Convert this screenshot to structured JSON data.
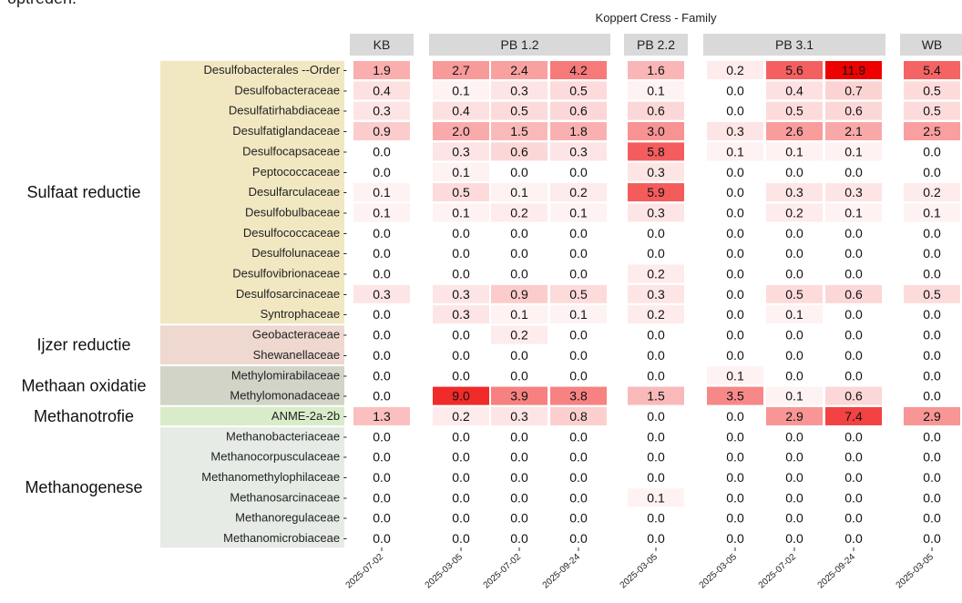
{
  "page": {
    "intro_text": "optreden."
  },
  "chart_data": {
    "type": "heatmap",
    "title": "Koppert Cress - Family",
    "facets": [
      {
        "label": "KB",
        "dates": [
          "2025-07-02"
        ]
      },
      {
        "label": "PB 1.2",
        "dates": [
          "2025-03-05",
          "2025-07-02",
          "2025-09-24"
        ]
      },
      {
        "label": "PB 2.2",
        "dates": [
          "2025-03-05"
        ]
      },
      {
        "label": "PB 3.1",
        "dates": [
          "2025-03-05",
          "2025-07-02",
          "2025-09-24"
        ]
      },
      {
        "label": "WB",
        "dates": [
          "2025-03-05"
        ]
      }
    ],
    "groups": [
      {
        "label": "Sulfaat reductie",
        "color": "#f1e8c2",
        "rows": [
          0,
          12
        ]
      },
      {
        "label": "Ijzer reductie",
        "color": "#eed8cf",
        "rows": [
          13,
          14
        ]
      },
      {
        "label": "Methaan oxidatie",
        "color": "#d2d4c8",
        "rows": [
          15,
          16
        ]
      },
      {
        "label": "Methanotrofie",
        "color": "#d9ecc9",
        "rows": [
          17,
          17
        ]
      },
      {
        "label": "Methanogenese",
        "color": "#e6ebe6",
        "rows": [
          18,
          23
        ]
      }
    ],
    "rows": [
      "Desulfobacterales --Order",
      "Desulfobacteraceae",
      "Desulfatirhabdiaceae",
      "Desulfatiglandaceae",
      "Desulfocapsaceae",
      "Peptococcaceae",
      "Desulfarculaceae",
      "Desulfobulbaceae",
      "Desulfococcaceae",
      "Desulfolunaceae",
      "Desulfovibrionaceae",
      "Desulfosarcinaceae",
      "Syntrophaceae",
      "Geobacteraceae",
      "Shewanellaceae",
      "Methylomirabilaceae",
      "Methylomonadaceae",
      "ANME-2a-2b",
      "Methanobacteriaceae",
      "Methanocorpusculaceae",
      "Methanomethylophilaceae",
      "Methanosarcinaceae",
      "Methanoregulaceae",
      "Methanomicrobiaceae"
    ],
    "values": [
      [
        "1.9",
        "2.7",
        "2.4",
        "4.2",
        "1.6",
        "0.2",
        "5.6",
        "11.9",
        "5.4"
      ],
      [
        "0.4",
        "0.1",
        "0.3",
        "0.5",
        "0.1",
        "0.0",
        "0.4",
        "0.7",
        "0.5"
      ],
      [
        "0.3",
        "0.4",
        "0.5",
        "0.6",
        "0.6",
        "0.0",
        "0.5",
        "0.6",
        "0.5"
      ],
      [
        "0.9",
        "2.0",
        "1.5",
        "1.8",
        "3.0",
        "0.3",
        "2.6",
        "2.1",
        "2.5"
      ],
      [
        "0.0",
        "0.3",
        "0.6",
        "0.3",
        "5.8",
        "0.1",
        "0.1",
        "0.1",
        "0.0"
      ],
      [
        "0.0",
        "0.1",
        "0.0",
        "0.0",
        "0.3",
        "0.0",
        "0.0",
        "0.0",
        "0.0"
      ],
      [
        "0.1",
        "0.5",
        "0.1",
        "0.2",
        "5.9",
        "0.0",
        "0.3",
        "0.3",
        "0.2"
      ],
      [
        "0.1",
        "0.1",
        "0.2",
        "0.1",
        "0.3",
        "0.0",
        "0.2",
        "0.1",
        "0.1"
      ],
      [
        "0.0",
        "0.0",
        "0.0",
        "0.0",
        "0.0",
        "0.0",
        "0.0",
        "0.0",
        "0.0"
      ],
      [
        "0.0",
        "0.0",
        "0.0",
        "0.0",
        "0.0",
        "0.0",
        "0.0",
        "0.0",
        "0.0"
      ],
      [
        "0.0",
        "0.0",
        "0.0",
        "0.0",
        "0.2",
        "0.0",
        "0.0",
        "0.0",
        "0.0"
      ],
      [
        "0.3",
        "0.3",
        "0.9",
        "0.5",
        "0.3",
        "0.0",
        "0.5",
        "0.6",
        "0.5"
      ],
      [
        "0.0",
        "0.3",
        "0.1",
        "0.1",
        "0.2",
        "0.0",
        "0.1",
        "0.0",
        "0.0"
      ],
      [
        "0.0",
        "0.0",
        "0.2",
        "0.0",
        "0.0",
        "0.0",
        "0.0",
        "0.0",
        "0.0"
      ],
      [
        "0.0",
        "0.0",
        "0.0",
        "0.0",
        "0.0",
        "0.0",
        "0.0",
        "0.0",
        "0.0"
      ],
      [
        "0.0",
        "0.0",
        "0.0",
        "0.0",
        "0.0",
        "0.1",
        "0.0",
        "0.0",
        "0.0"
      ],
      [
        "0.0",
        "9.0",
        "3.9",
        "3.8",
        "1.5",
        "3.5",
        "0.1",
        "0.6",
        "0.0"
      ],
      [
        "1.3",
        "0.2",
        "0.3",
        "0.8",
        "0.0",
        "0.0",
        "2.9",
        "7.4",
        "2.9"
      ],
      [
        "0.0",
        "0.0",
        "0.0",
        "0.0",
        "0.0",
        "0.0",
        "0.0",
        "0.0",
        "0.0"
      ],
      [
        "0.0",
        "0.0",
        "0.0",
        "0.0",
        "0.0",
        "0.0",
        "0.0",
        "0.0",
        "0.0"
      ],
      [
        "0.0",
        "0.0",
        "0.0",
        "0.0",
        "0.0",
        "0.0",
        "0.0",
        "0.0",
        "0.0"
      ],
      [
        "0.0",
        "0.0",
        "0.0",
        "0.0",
        "0.1",
        "0.0",
        "0.0",
        "0.0",
        "0.0"
      ],
      [
        "0.0",
        "0.0",
        "0.0",
        "0.0",
        "0.0",
        "0.0",
        "0.0",
        "0.0",
        "0.0"
      ],
      [
        "0.0",
        "0.0",
        "0.0",
        "0.0",
        "0.0",
        "0.0",
        "0.0",
        "0.0",
        "0.0"
      ]
    ],
    "color_scale": {
      "low": "#ffffff",
      "high": "#ee0000",
      "max": 12
    },
    "facet_strip_color": "#d9d9d9",
    "legend": "none"
  }
}
